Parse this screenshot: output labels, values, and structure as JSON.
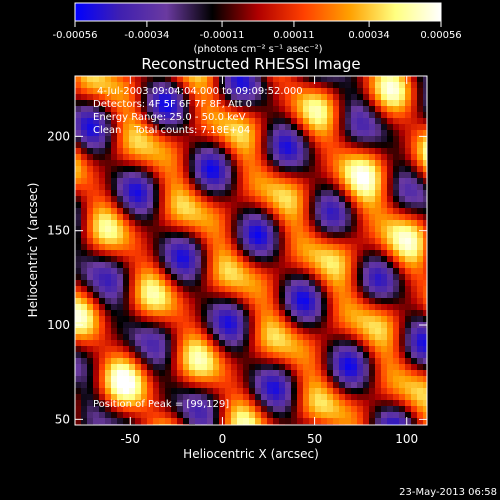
{
  "chart_data": {
    "type": "heatmap",
    "title": "Reconstructed RHESSI Image",
    "xlabel": "Heliocentric X (arcsec)",
    "ylabel": "Heliocentric Y (arcsec)",
    "xlim": [
      -80,
      111
    ],
    "ylim": [
      47,
      232
    ],
    "x_ticks": [
      "-50",
      "0",
      "50",
      "100"
    ],
    "x_tick_values": [
      -50,
      0,
      50,
      100
    ],
    "y_ticks": [
      "50",
      "100",
      "150",
      "200"
    ],
    "y_tick_values": [
      50,
      100,
      150,
      200
    ],
    "colorbar": {
      "ticks": [
        "-0.00056",
        "-0.00034",
        "-0.00011",
        "0.00011",
        "0.00034",
        "0.00056"
      ],
      "tick_values": [
        -0.00056,
        -0.00034,
        -0.00011,
        0.00011,
        0.00034,
        0.00056
      ],
      "range": [
        -0.00056,
        0.00056
      ],
      "units_label": "(photons cm⁻² s⁻¹ asec⁻²)",
      "colormap_stops": [
        "#0000ff",
        "#4020b0",
        "#6a3aa0",
        "#000000",
        "#b00000",
        "#ff4000",
        "#ffa000",
        "#ffff80",
        "#ffffff"
      ]
    },
    "annotations": {
      "time_range": "4-Jul-2003 09:04:04.000 to 09:09:52.000",
      "detectors": "Detectors: 4F 5F 6F 7F 8F, Att 0",
      "energy": "Energy Range: 25.0 - 50.0 keV",
      "clean": "Clean    Total counts: 7.18E+04",
      "peak": "Position of Peak = [99,129]"
    },
    "footer_date": "23-May-2013 06:58"
  }
}
